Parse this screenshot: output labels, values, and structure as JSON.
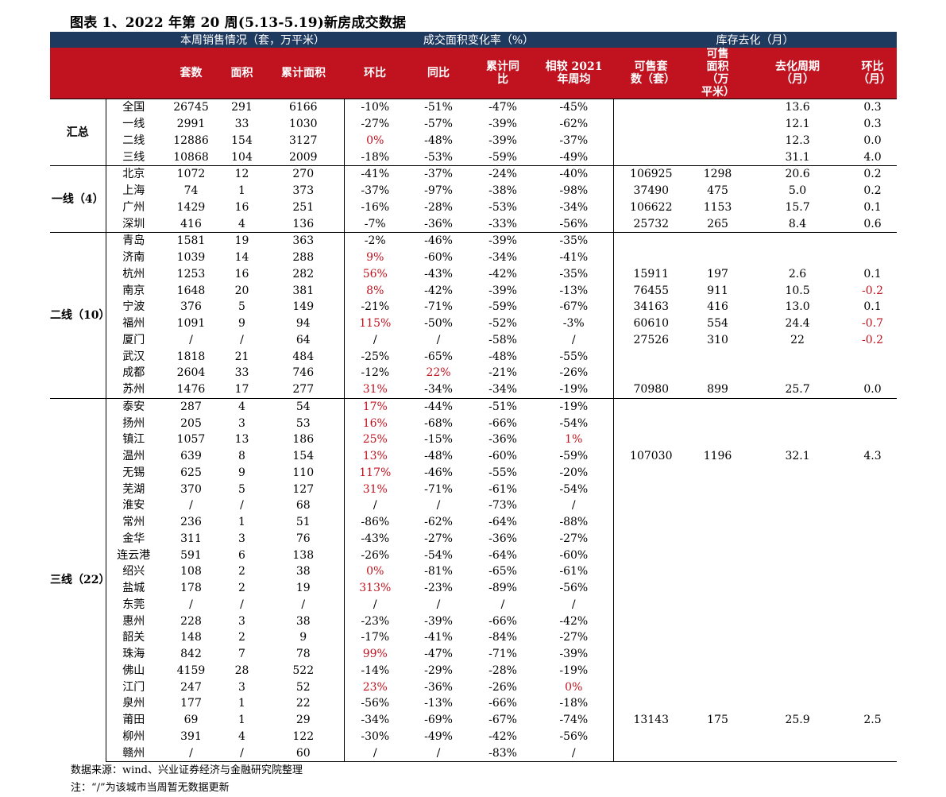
{
  "title": "图表 1、2022 年第 20 周(5.13-5.19)新房成交数据",
  "group_headers": [
    "本周销售情况（套，万平米）",
    "成交面积变化率（%）",
    "库存去化（月）"
  ],
  "columns": [
    "套数",
    "面积",
    "累计面积",
    "环比",
    "同比",
    "累计同比",
    "相较 2021 年周均",
    "可售套数（套）",
    "可售面积（万平米）",
    "去化周期（月）",
    "环比（月）"
  ],
  "colors": {
    "header_navy": "#1f3a5f",
    "header_red": "#c0121f",
    "highlight_red": "#c0121f"
  },
  "sections": [
    {
      "name": "汇总",
      "rows": [
        {
          "city": "全国",
          "sets": "26745",
          "area": "291",
          "cum": "6166",
          "mom": "-10%",
          "yoy": "-51%",
          "cum_yoy": "-47%",
          "vs2021": "-45%",
          "inv_sets": "",
          "inv_area": "",
          "cycle": "13.6",
          "cycle_mom": "0.3"
        },
        {
          "city": "一线",
          "sets": "2991",
          "area": "33",
          "cum": "1030",
          "mom": "-27%",
          "yoy": "-57%",
          "cum_yoy": "-39%",
          "vs2021": "-62%",
          "inv_sets": "",
          "inv_area": "",
          "cycle": "12.1",
          "cycle_mom": "0.3"
        },
        {
          "city": "二线",
          "sets": "12886",
          "area": "154",
          "cum": "3127",
          "mom": "0%",
          "yoy": "-48%",
          "cum_yoy": "-39%",
          "vs2021": "-37%",
          "inv_sets": "",
          "inv_area": "",
          "cycle": "12.3",
          "cycle_mom": "0.0",
          "red": [
            "mom"
          ]
        },
        {
          "city": "三线",
          "sets": "10868",
          "area": "104",
          "cum": "2009",
          "mom": "-18%",
          "yoy": "-53%",
          "cum_yoy": "-59%",
          "vs2021": "-49%",
          "inv_sets": "",
          "inv_area": "",
          "cycle": "31.1",
          "cycle_mom": "4.0"
        }
      ]
    },
    {
      "name": "一线（4）",
      "rows": [
        {
          "city": "北京",
          "sets": "1072",
          "area": "12",
          "cum": "270",
          "mom": "-41%",
          "yoy": "-37%",
          "cum_yoy": "-24%",
          "vs2021": "-40%",
          "inv_sets": "106925",
          "inv_area": "1298",
          "cycle": "20.6",
          "cycle_mom": "0.2"
        },
        {
          "city": "上海",
          "sets": "74",
          "area": "1",
          "cum": "373",
          "mom": "-37%",
          "yoy": "-97%",
          "cum_yoy": "-38%",
          "vs2021": "-98%",
          "inv_sets": "37490",
          "inv_area": "475",
          "cycle": "5.0",
          "cycle_mom": "0.2"
        },
        {
          "city": "广州",
          "sets": "1429",
          "area": "16",
          "cum": "251",
          "mom": "-16%",
          "yoy": "-28%",
          "cum_yoy": "-53%",
          "vs2021": "-34%",
          "inv_sets": "106622",
          "inv_area": "1153",
          "cycle": "15.7",
          "cycle_mom": "0.1"
        },
        {
          "city": "深圳",
          "sets": "416",
          "area": "4",
          "cum": "136",
          "mom": "-7%",
          "yoy": "-36%",
          "cum_yoy": "-33%",
          "vs2021": "-56%",
          "inv_sets": "25732",
          "inv_area": "265",
          "cycle": "8.4",
          "cycle_mom": "0.6"
        }
      ]
    },
    {
      "name": "二线（10）",
      "rows": [
        {
          "city": "青岛",
          "sets": "1581",
          "area": "19",
          "cum": "363",
          "mom": "-2%",
          "yoy": "-46%",
          "cum_yoy": "-39%",
          "vs2021": "-35%",
          "inv_sets": "",
          "inv_area": "",
          "cycle": "",
          "cycle_mom": ""
        },
        {
          "city": "济南",
          "sets": "1039",
          "area": "14",
          "cum": "288",
          "mom": "9%",
          "yoy": "-60%",
          "cum_yoy": "-34%",
          "vs2021": "-41%",
          "inv_sets": "",
          "inv_area": "",
          "cycle": "",
          "cycle_mom": "",
          "red": [
            "mom"
          ]
        },
        {
          "city": "杭州",
          "sets": "1253",
          "area": "16",
          "cum": "282",
          "mom": "56%",
          "yoy": "-43%",
          "cum_yoy": "-42%",
          "vs2021": "-35%",
          "inv_sets": "15911",
          "inv_area": "197",
          "cycle": "2.6",
          "cycle_mom": "0.1",
          "red": [
            "mom"
          ]
        },
        {
          "city": "南京",
          "sets": "1648",
          "area": "20",
          "cum": "381",
          "mom": "8%",
          "yoy": "-42%",
          "cum_yoy": "-39%",
          "vs2021": "-13%",
          "inv_sets": "76455",
          "inv_area": "911",
          "cycle": "10.5",
          "cycle_mom": "-0.2",
          "red": [
            "mom",
            "cycle_mom"
          ]
        },
        {
          "city": "宁波",
          "sets": "376",
          "area": "5",
          "cum": "149",
          "mom": "-21%",
          "yoy": "-71%",
          "cum_yoy": "-59%",
          "vs2021": "-67%",
          "inv_sets": "34163",
          "inv_area": "416",
          "cycle": "13.0",
          "cycle_mom": "0.1"
        },
        {
          "city": "福州",
          "sets": "1091",
          "area": "9",
          "cum": "94",
          "mom": "115%",
          "yoy": "-50%",
          "cum_yoy": "-52%",
          "vs2021": "-3%",
          "inv_sets": "60610",
          "inv_area": "554",
          "cycle": "24.4",
          "cycle_mom": "-0.7",
          "red": [
            "mom",
            "cycle_mom"
          ]
        },
        {
          "city": "厦门",
          "sets": "/",
          "area": "/",
          "cum": "64",
          "mom": "/",
          "yoy": "/",
          "cum_yoy": "-58%",
          "vs2021": "/",
          "inv_sets": "27526",
          "inv_area": "310",
          "cycle": "22",
          "cycle_mom": "-0.2",
          "red": [
            "cycle_mom"
          ]
        },
        {
          "city": "武汉",
          "sets": "1818",
          "area": "21",
          "cum": "484",
          "mom": "-25%",
          "yoy": "-65%",
          "cum_yoy": "-48%",
          "vs2021": "-55%",
          "inv_sets": "",
          "inv_area": "",
          "cycle": "",
          "cycle_mom": ""
        },
        {
          "city": "成都",
          "sets": "2604",
          "area": "33",
          "cum": "746",
          "mom": "-12%",
          "yoy": "22%",
          "cum_yoy": "-21%",
          "vs2021": "-26%",
          "inv_sets": "",
          "inv_area": "",
          "cycle": "",
          "cycle_mom": "",
          "red": [
            "yoy"
          ]
        },
        {
          "city": "苏州",
          "sets": "1476",
          "area": "17",
          "cum": "277",
          "mom": "31%",
          "yoy": "-34%",
          "cum_yoy": "-34%",
          "vs2021": "-19%",
          "inv_sets": "70980",
          "inv_area": "899",
          "cycle": "25.7",
          "cycle_mom": "0.0",
          "red": [
            "mom"
          ]
        }
      ]
    },
    {
      "name": "三线（22）",
      "rows": [
        {
          "city": "泰安",
          "sets": "287",
          "area": "4",
          "cum": "54",
          "mom": "17%",
          "yoy": "-44%",
          "cum_yoy": "-51%",
          "vs2021": "-19%",
          "inv_sets": "",
          "inv_area": "",
          "cycle": "",
          "cycle_mom": "",
          "red": [
            "mom"
          ]
        },
        {
          "city": "扬州",
          "sets": "205",
          "area": "3",
          "cum": "53",
          "mom": "16%",
          "yoy": "-68%",
          "cum_yoy": "-66%",
          "vs2021": "-54%",
          "inv_sets": "",
          "inv_area": "",
          "cycle": "",
          "cycle_mom": "",
          "red": [
            "mom"
          ]
        },
        {
          "city": "镇江",
          "sets": "1057",
          "area": "13",
          "cum": "186",
          "mom": "25%",
          "yoy": "-15%",
          "cum_yoy": "-36%",
          "vs2021": "1%",
          "inv_sets": "",
          "inv_area": "",
          "cycle": "",
          "cycle_mom": "",
          "red": [
            "mom",
            "vs2021"
          ]
        },
        {
          "city": "温州",
          "sets": "639",
          "area": "8",
          "cum": "154",
          "mom": "13%",
          "yoy": "-48%",
          "cum_yoy": "-60%",
          "vs2021": "-59%",
          "inv_sets": "107030",
          "inv_area": "1196",
          "cycle": "32.1",
          "cycle_mom": "4.3",
          "red": [
            "mom"
          ]
        },
        {
          "city": "无锡",
          "sets": "625",
          "area": "9",
          "cum": "110",
          "mom": "117%",
          "yoy": "-46%",
          "cum_yoy": "-55%",
          "vs2021": "-20%",
          "inv_sets": "",
          "inv_area": "",
          "cycle": "",
          "cycle_mom": "",
          "red": [
            "mom"
          ]
        },
        {
          "city": "芜湖",
          "sets": "370",
          "area": "5",
          "cum": "127",
          "mom": "31%",
          "yoy": "-71%",
          "cum_yoy": "-61%",
          "vs2021": "-54%",
          "inv_sets": "",
          "inv_area": "",
          "cycle": "",
          "cycle_mom": "",
          "red": [
            "mom"
          ]
        },
        {
          "city": "淮安",
          "sets": "/",
          "area": "/",
          "cum": "68",
          "mom": "/",
          "yoy": "/",
          "cum_yoy": "-73%",
          "vs2021": "/",
          "inv_sets": "",
          "inv_area": "",
          "cycle": "",
          "cycle_mom": ""
        },
        {
          "city": "常州",
          "sets": "236",
          "area": "1",
          "cum": "51",
          "mom": "-86%",
          "yoy": "-62%",
          "cum_yoy": "-64%",
          "vs2021": "-88%",
          "inv_sets": "",
          "inv_area": "",
          "cycle": "",
          "cycle_mom": ""
        },
        {
          "city": "金华",
          "sets": "311",
          "area": "3",
          "cum": "76",
          "mom": "-43%",
          "yoy": "-27%",
          "cum_yoy": "-36%",
          "vs2021": "-27%",
          "inv_sets": "",
          "inv_area": "",
          "cycle": "",
          "cycle_mom": ""
        },
        {
          "city": "连云港",
          "sets": "591",
          "area": "6",
          "cum": "138",
          "mom": "-26%",
          "yoy": "-54%",
          "cum_yoy": "-64%",
          "vs2021": "-60%",
          "inv_sets": "",
          "inv_area": "",
          "cycle": "",
          "cycle_mom": ""
        },
        {
          "city": "绍兴",
          "sets": "108",
          "area": "2",
          "cum": "38",
          "mom": "0%",
          "yoy": "-81%",
          "cum_yoy": "-65%",
          "vs2021": "-61%",
          "inv_sets": "",
          "inv_area": "",
          "cycle": "",
          "cycle_mom": "",
          "red": [
            "mom"
          ]
        },
        {
          "city": "盐城",
          "sets": "178",
          "area": "2",
          "cum": "19",
          "mom": "313%",
          "yoy": "-23%",
          "cum_yoy": "-89%",
          "vs2021": "-56%",
          "inv_sets": "",
          "inv_area": "",
          "cycle": "",
          "cycle_mom": "",
          "red": [
            "mom"
          ]
        },
        {
          "city": "东莞",
          "sets": "/",
          "area": "/",
          "cum": "/",
          "mom": "/",
          "yoy": "/",
          "cum_yoy": "/",
          "vs2021": "/",
          "inv_sets": "",
          "inv_area": "",
          "cycle": "",
          "cycle_mom": ""
        },
        {
          "city": "惠州",
          "sets": "228",
          "area": "3",
          "cum": "38",
          "mom": "-23%",
          "yoy": "-39%",
          "cum_yoy": "-66%",
          "vs2021": "-42%",
          "inv_sets": "",
          "inv_area": "",
          "cycle": "",
          "cycle_mom": ""
        },
        {
          "city": "韶关",
          "sets": "148",
          "area": "2",
          "cum": "9",
          "mom": "-17%",
          "yoy": "-41%",
          "cum_yoy": "-84%",
          "vs2021": "-27%",
          "inv_sets": "",
          "inv_area": "",
          "cycle": "",
          "cycle_mom": ""
        },
        {
          "city": "珠海",
          "sets": "842",
          "area": "7",
          "cum": "78",
          "mom": "99%",
          "yoy": "-47%",
          "cum_yoy": "-71%",
          "vs2021": "-39%",
          "inv_sets": "",
          "inv_area": "",
          "cycle": "",
          "cycle_mom": "",
          "red": [
            "mom"
          ]
        },
        {
          "city": "佛山",
          "sets": "4159",
          "area": "28",
          "cum": "522",
          "mom": "-14%",
          "yoy": "-29%",
          "cum_yoy": "-28%",
          "vs2021": "-19%",
          "inv_sets": "",
          "inv_area": "",
          "cycle": "",
          "cycle_mom": ""
        },
        {
          "city": "江门",
          "sets": "247",
          "area": "3",
          "cum": "52",
          "mom": "23%",
          "yoy": "-36%",
          "cum_yoy": "-26%",
          "vs2021": "0%",
          "inv_sets": "",
          "inv_area": "",
          "cycle": "",
          "cycle_mom": "",
          "red": [
            "mom",
            "vs2021"
          ]
        },
        {
          "city": "泉州",
          "sets": "177",
          "area": "1",
          "cum": "22",
          "mom": "-56%",
          "yoy": "-13%",
          "cum_yoy": "-66%",
          "vs2021": "-18%",
          "inv_sets": "",
          "inv_area": "",
          "cycle": "",
          "cycle_mom": ""
        },
        {
          "city": "莆田",
          "sets": "69",
          "area": "1",
          "cum": "29",
          "mom": "-34%",
          "yoy": "-69%",
          "cum_yoy": "-67%",
          "vs2021": "-74%",
          "inv_sets": "13143",
          "inv_area": "175",
          "cycle": "25.9",
          "cycle_mom": "2.5"
        },
        {
          "city": "柳州",
          "sets": "391",
          "area": "4",
          "cum": "122",
          "mom": "-30%",
          "yoy": "-49%",
          "cum_yoy": "-42%",
          "vs2021": "-56%",
          "inv_sets": "",
          "inv_area": "",
          "cycle": "",
          "cycle_mom": ""
        },
        {
          "city": "赣州",
          "sets": "/",
          "area": "/",
          "cum": "60",
          "mom": "/",
          "yoy": "/",
          "cum_yoy": "-83%",
          "vs2021": "/",
          "inv_sets": "",
          "inv_area": "",
          "cycle": "",
          "cycle_mom": ""
        }
      ]
    }
  ],
  "notes": [
    "数据来源：wind、兴业证券经济与金融研究院整理",
    "注：“/”为该城市当周暂无数据更新"
  ]
}
